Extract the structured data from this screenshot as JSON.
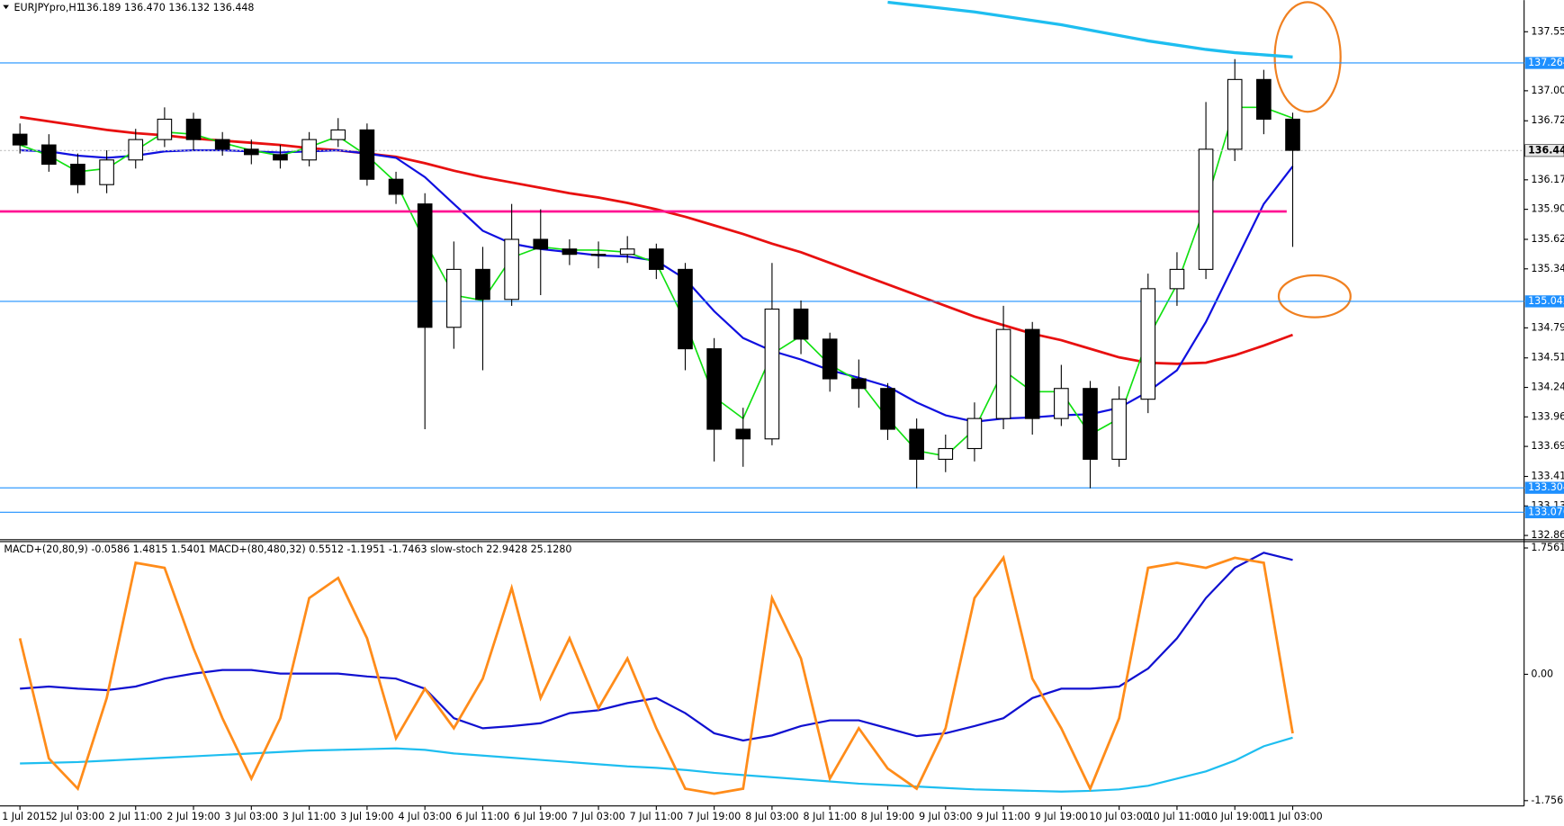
{
  "chart_data": [
    {
      "type": "candlestick",
      "title": "EURJPYpro,H1",
      "subtitle": "136.189 136.470 136.132 136.448",
      "open": [
        136.6,
        136.5,
        136.32,
        136.13,
        136.36,
        136.55,
        136.74,
        136.55,
        136.46,
        136.41,
        136.36,
        136.55,
        136.64,
        136.18,
        135.95,
        134.8,
        135.34,
        135.06,
        135.62,
        135.53,
        135.48,
        135.48,
        135.53,
        135.34,
        134.6,
        133.85,
        133.76,
        134.97,
        134.69,
        134.32,
        134.23,
        133.85,
        133.57,
        133.67,
        133.95,
        134.78,
        133.95,
        134.23,
        133.57,
        134.13,
        135.16,
        135.34,
        136.46,
        137.11,
        136.74
      ],
      "high": [
        136.7,
        136.6,
        136.42,
        136.45,
        136.65,
        136.85,
        136.8,
        136.62,
        136.55,
        136.5,
        136.62,
        136.75,
        136.7,
        136.25,
        136.05,
        135.6,
        135.55,
        135.95,
        135.9,
        135.62,
        135.6,
        135.65,
        135.58,
        135.4,
        134.7,
        134.05,
        135.4,
        135.05,
        134.75,
        134.5,
        134.28,
        133.95,
        133.8,
        134.1,
        135.0,
        134.85,
        134.45,
        134.3,
        134.25,
        135.3,
        135.5,
        136.9,
        137.3,
        137.2,
        136.8
      ],
      "low": [
        136.42,
        136.25,
        136.05,
        136.05,
        136.28,
        136.48,
        136.45,
        136.4,
        136.32,
        136.28,
        136.3,
        136.48,
        136.12,
        135.95,
        133.85,
        134.6,
        134.4,
        135.0,
        135.1,
        135.38,
        135.35,
        135.4,
        135.25,
        134.4,
        133.55,
        133.5,
        133.7,
        134.55,
        134.2,
        134.05,
        133.75,
        133.3,
        133.45,
        133.55,
        133.85,
        133.8,
        133.88,
        133.3,
        133.5,
        134.0,
        135.0,
        135.25,
        136.35,
        136.6,
        135.55
      ],
      "close": [
        136.5,
        136.32,
        136.13,
        136.36,
        136.55,
        136.74,
        136.55,
        136.46,
        136.41,
        136.36,
        136.55,
        136.64,
        136.18,
        136.04,
        134.8,
        135.34,
        135.06,
        135.62,
        135.53,
        135.48,
        135.48,
        135.53,
        135.34,
        134.6,
        133.85,
        133.76,
        134.97,
        134.69,
        134.32,
        134.23,
        133.85,
        133.57,
        133.67,
        133.95,
        134.78,
        133.95,
        134.23,
        133.57,
        134.13,
        135.16,
        135.34,
        136.46,
        137.11,
        136.74,
        136.45
      ],
      "up_color": "#ffffff",
      "down_color": "#000000",
      "ylim": [
        132.83,
        137.85
      ],
      "yticks": [
        137.555,
        137.005,
        136.725,
        136.175,
        {
          "value": 135.9,
          "label": "135.900"
        },
        {
          "value": 135.62,
          "label": "135.620"
        },
        135.345,
        134.795,
        134.515,
        {
          "value": 134.24,
          "label": "134.240"
        },
        133.965,
        {
          "value": 133.69,
          "label": "133.690"
        },
        {
          "value": 133.41,
          "label": "133.410"
        },
        133.135,
        {
          "value": 132.86,
          "label": "132.860"
        }
      ],
      "levels": [
        {
          "value": 137.264,
          "color": "#1e90ff"
        },
        {
          "value": 135.042,
          "color": "#1e90ff"
        },
        {
          "value": 133.304,
          "color": "#1e90ff"
        },
        {
          "value": 133.076,
          "color": "#1e90ff"
        }
      ],
      "support_line": {
        "value": 135.88,
        "color": "#ff1493"
      },
      "bid": 136.448,
      "overlays": [
        {
          "color": "#e81010",
          "width": 2.5,
          "values": [
            136.76,
            136.72,
            136.68,
            136.64,
            136.61,
            136.59,
            136.56,
            136.54,
            136.52,
            136.5,
            136.47,
            136.45,
            136.42,
            136.39,
            136.33,
            136.26,
            136.2,
            136.15,
            136.1,
            136.05,
            136.01,
            135.96,
            135.9,
            135.83,
            135.75,
            135.67,
            135.58,
            135.5,
            135.4,
            135.3,
            135.2,
            135.1,
            135.0,
            134.9,
            134.82,
            134.74,
            134.68,
            134.6,
            134.52,
            134.47,
            134.46,
            134.47,
            134.54,
            134.63,
            134.73
          ]
        },
        {
          "color": "#1010e0",
          "width": 2,
          "values": [
            136.45,
            136.44,
            136.4,
            136.38,
            136.4,
            136.44,
            136.45,
            136.45,
            136.44,
            136.43,
            136.44,
            136.45,
            136.42,
            136.38,
            136.2,
            135.95,
            135.7,
            135.58,
            135.53,
            135.5,
            135.47,
            135.46,
            135.42,
            135.25,
            134.95,
            134.7,
            134.58,
            134.5,
            134.4,
            134.33,
            134.25,
            134.1,
            133.98,
            133.92,
            133.95,
            133.96,
            133.98,
            133.99,
            134.05,
            134.2,
            134.4,
            134.85,
            135.4,
            135.95,
            136.3
          ]
        },
        {
          "color": "#10e010",
          "width": 1.5,
          "values": [
            136.5,
            136.4,
            136.25,
            136.28,
            136.45,
            136.62,
            136.6,
            136.52,
            136.45,
            136.4,
            136.48,
            136.58,
            136.4,
            136.15,
            135.6,
            135.1,
            135.05,
            135.45,
            135.55,
            135.52,
            135.52,
            135.5,
            135.4,
            134.85,
            134.15,
            133.95,
            134.55,
            134.72,
            134.45,
            134.3,
            133.95,
            133.65,
            133.6,
            133.85,
            134.4,
            134.2,
            134.2,
            133.8,
            133.95,
            134.7,
            135.2,
            135.95,
            136.85,
            136.85,
            136.75
          ]
        },
        {
          "color": "#1ebef0",
          "width": 3,
          "values": [
            null,
            null,
            null,
            null,
            null,
            null,
            null,
            null,
            null,
            null,
            null,
            null,
            null,
            null,
            null,
            null,
            null,
            null,
            null,
            null,
            null,
            null,
            null,
            null,
            null,
            null,
            null,
            null,
            null,
            null,
            137.83,
            137.8,
            137.77,
            137.74,
            137.7,
            137.66,
            137.62,
            137.57,
            137.52,
            137.47,
            137.43,
            137.39,
            137.36,
            137.34,
            137.32
          ]
        }
      ]
    },
    {
      "type": "line",
      "title": "MACD+(20,80,9) -0.0586 1.4815 1.5401   MACD+(80,480,32) 0.5512 -1.1951 -1.7463   slow-stoch 22.9428 25.1280",
      "categories": [
        "1 Jul 2015",
        null,
        "2 Jul 03:00",
        null,
        "2 Jul 11:00",
        null,
        "2 Jul 19:00",
        null,
        "3 Jul 03:00",
        null,
        "3 Jul 11:00",
        null,
        "3 Jul 19:00",
        null,
        "4 Jul 03:00",
        null,
        "6 Jul 11:00",
        null,
        "6 Jul 19:00",
        null,
        "7 Jul 03:00",
        null,
        "7 Jul 11:00",
        null,
        "7 Jul 19:00",
        null,
        "8 Jul 03:00",
        null,
        "8 Jul 11:00",
        null,
        "8 Jul 19:00",
        null,
        "9 Jul 03:00",
        null,
        "9 Jul 11:00",
        null,
        "9 Jul 19:00",
        null,
        "10 Jul 03:00",
        null,
        "10 Jul 11:00",
        null,
        "10 Jul 19:00",
        null,
        "11 Jul 03:00"
      ],
      "ylim": [
        -1.83,
        1.83
      ],
      "yticks": [
        1.7561,
        {
          "value": 0,
          "label": "0.00"
        },
        -1.7561
      ],
      "series": [
        {
          "color": "#1ebef0",
          "width": 2,
          "values": [
            -1.24,
            -1.23,
            -1.22,
            -1.2,
            -1.18,
            -1.16,
            -1.14,
            -1.12,
            -1.1,
            -1.08,
            -1.06,
            -1.05,
            -1.04,
            -1.03,
            -1.05,
            -1.1,
            -1.13,
            -1.16,
            -1.19,
            -1.22,
            -1.25,
            -1.28,
            -1.3,
            -1.33,
            -1.37,
            -1.4,
            -1.43,
            -1.46,
            -1.49,
            -1.52,
            -1.54,
            -1.56,
            -1.58,
            -1.6,
            -1.61,
            -1.62,
            -1.63,
            -1.62,
            -1.6,
            -1.55,
            -1.45,
            -1.35,
            -1.2,
            -1.0,
            -0.88
          ]
        },
        {
          "color": "#1010d0",
          "width": 2,
          "values": [
            -0.2,
            -0.17,
            -0.2,
            -0.22,
            -0.17,
            -0.06,
            0.01,
            0.06,
            0.06,
            0.01,
            0.01,
            0.01,
            -0.03,
            -0.06,
            -0.2,
            -0.61,
            -0.75,
            -0.72,
            -0.68,
            -0.54,
            -0.5,
            -0.4,
            -0.33,
            -0.54,
            -0.82,
            -0.92,
            -0.85,
            -0.72,
            -0.64,
            -0.64,
            -0.75,
            -0.86,
            -0.82,
            -0.72,
            -0.61,
            -0.33,
            -0.2,
            -0.2,
            -0.17,
            0.08,
            0.5,
            1.06,
            1.48,
            1.69,
            1.59
          ]
        },
        {
          "color": "#ff8c1a",
          "width": 2.5,
          "values": [
            0.5,
            -1.17,
            -1.59,
            -0.33,
            1.55,
            1.48,
            0.36,
            -0.61,
            -1.45,
            -0.61,
            1.06,
            1.34,
            0.5,
            -0.89,
            -0.2,
            -0.75,
            -0.06,
            1.2,
            -0.33,
            0.5,
            -0.47,
            0.22,
            -0.75,
            -1.59,
            -1.66,
            -1.59,
            1.06,
            0.22,
            -1.45,
            -0.75,
            -1.31,
            -1.59,
            -0.75,
            1.06,
            1.62,
            -0.06,
            -0.75,
            -1.59,
            -0.61,
            1.48,
            1.55,
            1.48,
            1.62,
            1.55,
            -0.82
          ]
        }
      ]
    }
  ]
}
